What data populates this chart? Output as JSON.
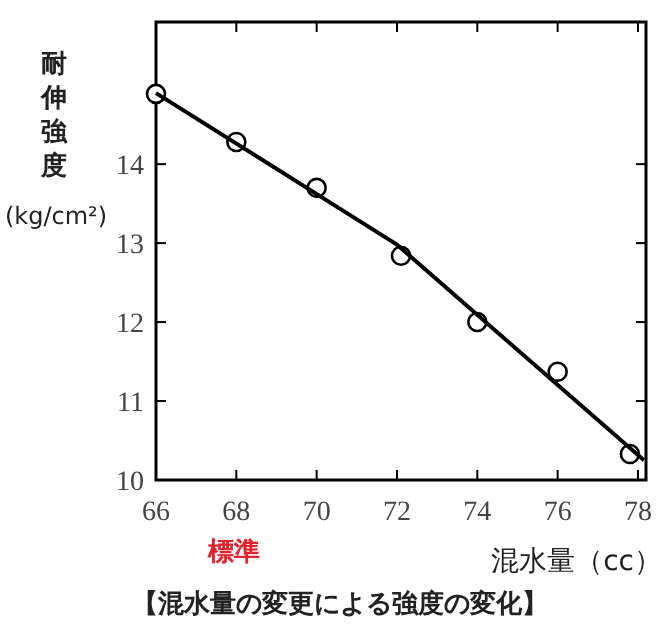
{
  "chart_data": {
    "type": "scatter",
    "title": "【混水量の変更による強度の変化】",
    "xlabel": "混水量（cc）",
    "ylabel": "耐伸強度\n(kg/cm²)",
    "xlim": [
      66,
      78.2
    ],
    "xticks": [
      66,
      68,
      70,
      72,
      74,
      76,
      78
    ],
    "ylim": [
      10,
      15.8
    ],
    "yticks": [
      10,
      11,
      12,
      13,
      14
    ],
    "grid": false,
    "annotations": [
      "標準"
    ],
    "series": [
      {
        "color": "#000000",
        "marker": "circle",
        "x": [
          66,
          68,
          70,
          72.1,
          74,
          76,
          77.8
        ],
        "values": [
          14.89,
          14.28,
          13.7,
          12.84,
          12.0,
          11.37,
          10.33
        ]
      },
      {
        "type": "line",
        "color": "#000000",
        "marker": "none",
        "x": [
          66,
          72,
          78.15
        ],
        "values": [
          14.9,
          12.98,
          10.25
        ]
      }
    ]
  }
}
